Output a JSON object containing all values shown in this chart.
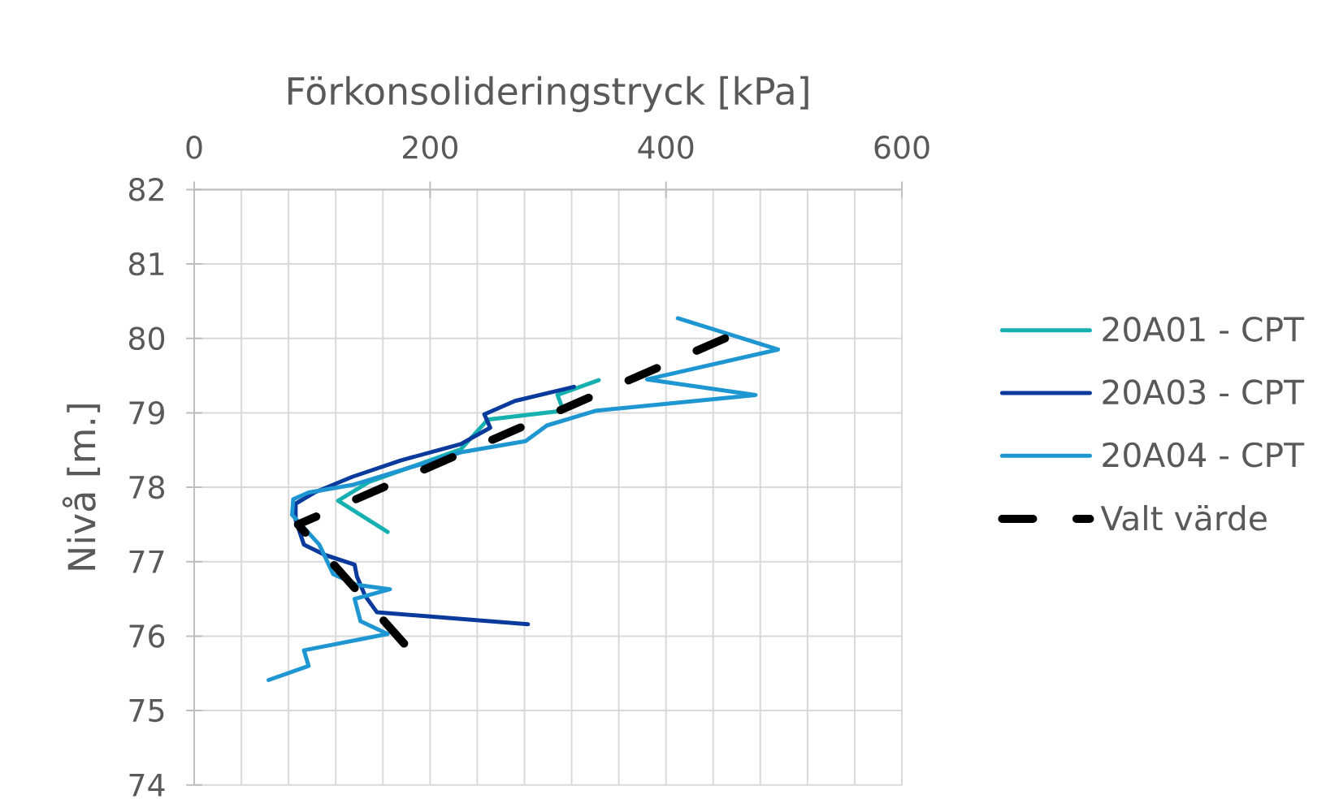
{
  "chart_data": {
    "type": "line",
    "xlabel": "Förkonsolideringstryck [kPa]",
    "ylabel": "Nivå [m.]",
    "xlim": [
      0,
      600
    ],
    "xticks": [
      0,
      200,
      400,
      600
    ],
    "ylim": [
      74,
      82
    ],
    "yticks": [
      74,
      75,
      76,
      77,
      78,
      79,
      80,
      81,
      82
    ],
    "grid": true,
    "legend": "right",
    "series": [
      {
        "name": "20A01 - CPT",
        "color": "#17b0b0",
        "x": [
          343,
          308,
          313,
          249,
          226,
          180,
          148,
          122,
          164
        ],
        "values": [
          79.44,
          79.24,
          79.03,
          78.91,
          78.51,
          78.25,
          78.07,
          77.82,
          77.4
        ]
      },
      {
        "name": "20A03 - CPT",
        "color": "#0a3a9c",
        "x": [
          322,
          272,
          246,
          251,
          226,
          175,
          134,
          102,
          86,
          86,
          93,
          111,
          136,
          138,
          145,
          155,
          283
        ],
        "values": [
          79.35,
          79.16,
          78.98,
          78.8,
          78.58,
          78.36,
          78.14,
          77.93,
          77.78,
          77.56,
          77.23,
          77.09,
          76.96,
          76.8,
          76.54,
          76.32,
          76.16
        ]
      },
      {
        "name": "20A04 - CPT",
        "color": "#1e96d2",
        "x": [
          410,
          495,
          384,
          476,
          341,
          299,
          281,
          226,
          134,
          97,
          84,
          83,
          106,
          118,
          138,
          166,
          136,
          141,
          164,
          93,
          97,
          63
        ],
        "values": [
          80.27,
          79.85,
          79.45,
          79.24,
          79.03,
          78.83,
          78.62,
          78.47,
          78.03,
          77.93,
          77.84,
          77.63,
          77.23,
          76.83,
          76.69,
          76.63,
          76.5,
          76.2,
          76.03,
          75.81,
          75.6,
          75.41
        ]
      },
      {
        "name": "Valt värde",
        "color": "#000000",
        "line_style": "dashed",
        "x": [
          450,
          88,
          178
        ],
        "values": [
          80.0,
          77.5,
          75.9
        ]
      }
    ]
  }
}
